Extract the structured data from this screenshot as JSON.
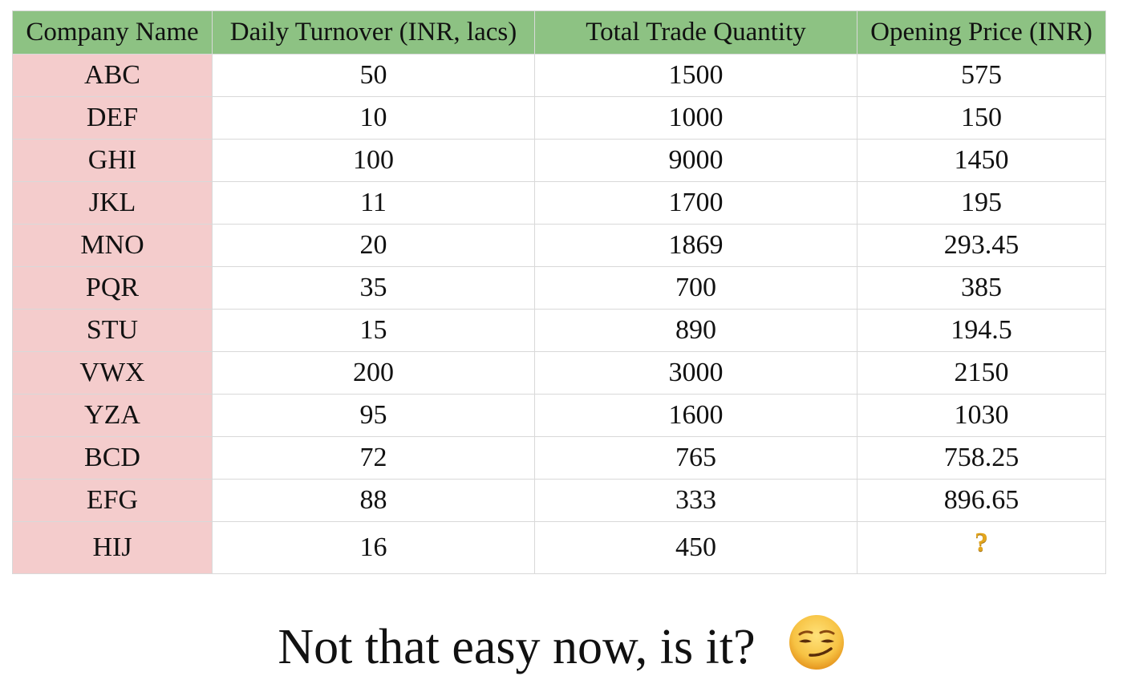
{
  "colors": {
    "header_bg": "#8dc283",
    "company_bg": "#f4cccc",
    "grid_line": "#d9d9d9",
    "question_mark": "#e3a61e",
    "emoji_face": "#f5c04a"
  },
  "table": {
    "headers": {
      "company": "Company Name",
      "turnover": "Daily Turnover (INR, lacs)",
      "quantity": "Total Trade Quantity",
      "price": "Opening Price (INR)"
    },
    "rows": [
      {
        "company": "ABC",
        "turnover": "50",
        "quantity": "1500",
        "price": "575"
      },
      {
        "company": "DEF",
        "turnover": "10",
        "quantity": "1000",
        "price": "150"
      },
      {
        "company": "GHI",
        "turnover": "100",
        "quantity": "9000",
        "price": "1450"
      },
      {
        "company": "JKL",
        "turnover": "11",
        "quantity": "1700",
        "price": "195"
      },
      {
        "company": "MNO",
        "turnover": "20",
        "quantity": "1869",
        "price": "293.45"
      },
      {
        "company": "PQR",
        "turnover": "35",
        "quantity": "700",
        "price": "385"
      },
      {
        "company": "STU",
        "turnover": "15",
        "quantity": "890",
        "price": "194.5"
      },
      {
        "company": "VWX",
        "turnover": "200",
        "quantity": "3000",
        "price": "2150"
      },
      {
        "company": "YZA",
        "turnover": "95",
        "quantity": "1600",
        "price": "1030"
      },
      {
        "company": "BCD",
        "turnover": "72",
        "quantity": "765",
        "price": "758.25"
      },
      {
        "company": "EFG",
        "turnover": "88",
        "quantity": "333",
        "price": "896.65"
      },
      {
        "company": "HIJ",
        "turnover": "16",
        "quantity": "450",
        "price": "?"
      }
    ]
  },
  "caption": {
    "text": "Not that easy now, is it?",
    "emoji_icon": "smirking-face-icon"
  }
}
